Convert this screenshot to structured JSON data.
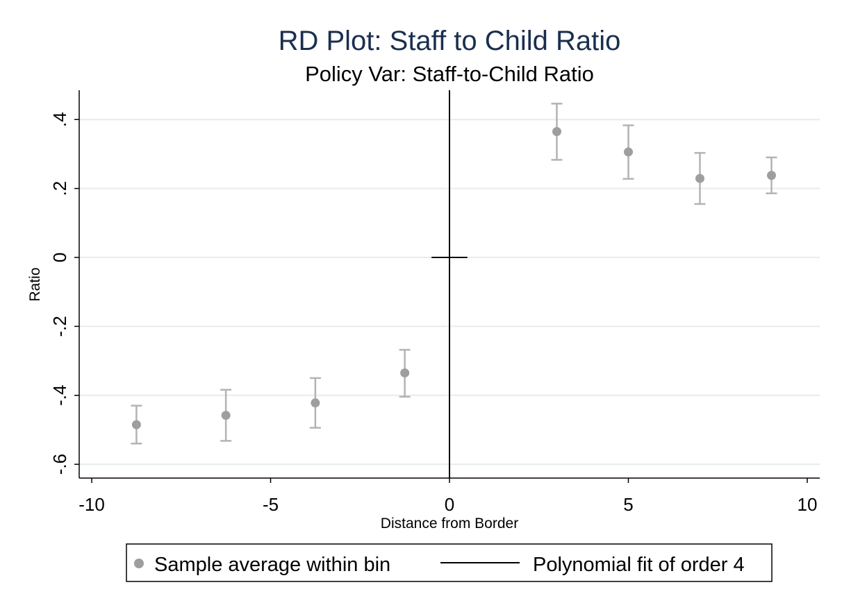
{
  "chart_data": {
    "type": "scatter",
    "title": "RD Plot: Staff to Child Ratio",
    "subtitle": "Policy Var: Staff-to-Child Ratio",
    "xlabel": "Distance from Border",
    "ylabel": "Ratio",
    "xlim": [
      -10.35,
      10.35
    ],
    "ylim": [
      -0.64,
      0.485
    ],
    "x_ticks": [
      -10,
      -5,
      0,
      5,
      10
    ],
    "x_tick_labels": [
      "-10",
      "-5",
      "0",
      "5",
      "10"
    ],
    "y_ticks": [
      0.4,
      0.2,
      0,
      -0.2,
      -0.4,
      -0.6
    ],
    "y_tick_labels": [
      ".4",
      ".2",
      "0",
      "-.2",
      "-.4",
      "-.6"
    ],
    "grid": true,
    "cutoff_x": 0,
    "series": [
      {
        "name": "Sample average within bin",
        "points": [
          {
            "x": -8.75,
            "y": -0.485,
            "ci_low": -0.54,
            "ci_high": -0.43
          },
          {
            "x": -6.25,
            "y": -0.458,
            "ci_low": -0.532,
            "ci_high": -0.384
          },
          {
            "x": -3.75,
            "y": -0.422,
            "ci_low": -0.494,
            "ci_high": -0.35
          },
          {
            "x": -1.25,
            "y": -0.335,
            "ci_low": -0.404,
            "ci_high": -0.268
          },
          {
            "x": 3.0,
            "y": 0.365,
            "ci_low": 0.283,
            "ci_high": 0.446
          },
          {
            "x": 5.0,
            "y": 0.306,
            "ci_low": 0.228,
            "ci_high": 0.383
          },
          {
            "x": 7.0,
            "y": 0.229,
            "ci_low": 0.155,
            "ci_high": 0.303
          },
          {
            "x": 9.0,
            "y": 0.238,
            "ci_low": 0.186,
            "ci_high": 0.29
          }
        ]
      },
      {
        "name": "Polynomial fit of order 4",
        "segments": [
          {
            "x": [
              -0.5,
              0.5
            ],
            "y": [
              0,
              0
            ]
          }
        ]
      }
    ],
    "legend": {
      "position": "bottom",
      "entries": [
        "Sample average within bin",
        "Polynomial fit of order 4"
      ]
    },
    "colors": {
      "title": "#1a2f4e",
      "marker": "#9e9e9e",
      "errorbar": "#b3b3b3",
      "gridline": "#e6ecec",
      "axis": "#000000",
      "fit_line": "#000000"
    }
  }
}
